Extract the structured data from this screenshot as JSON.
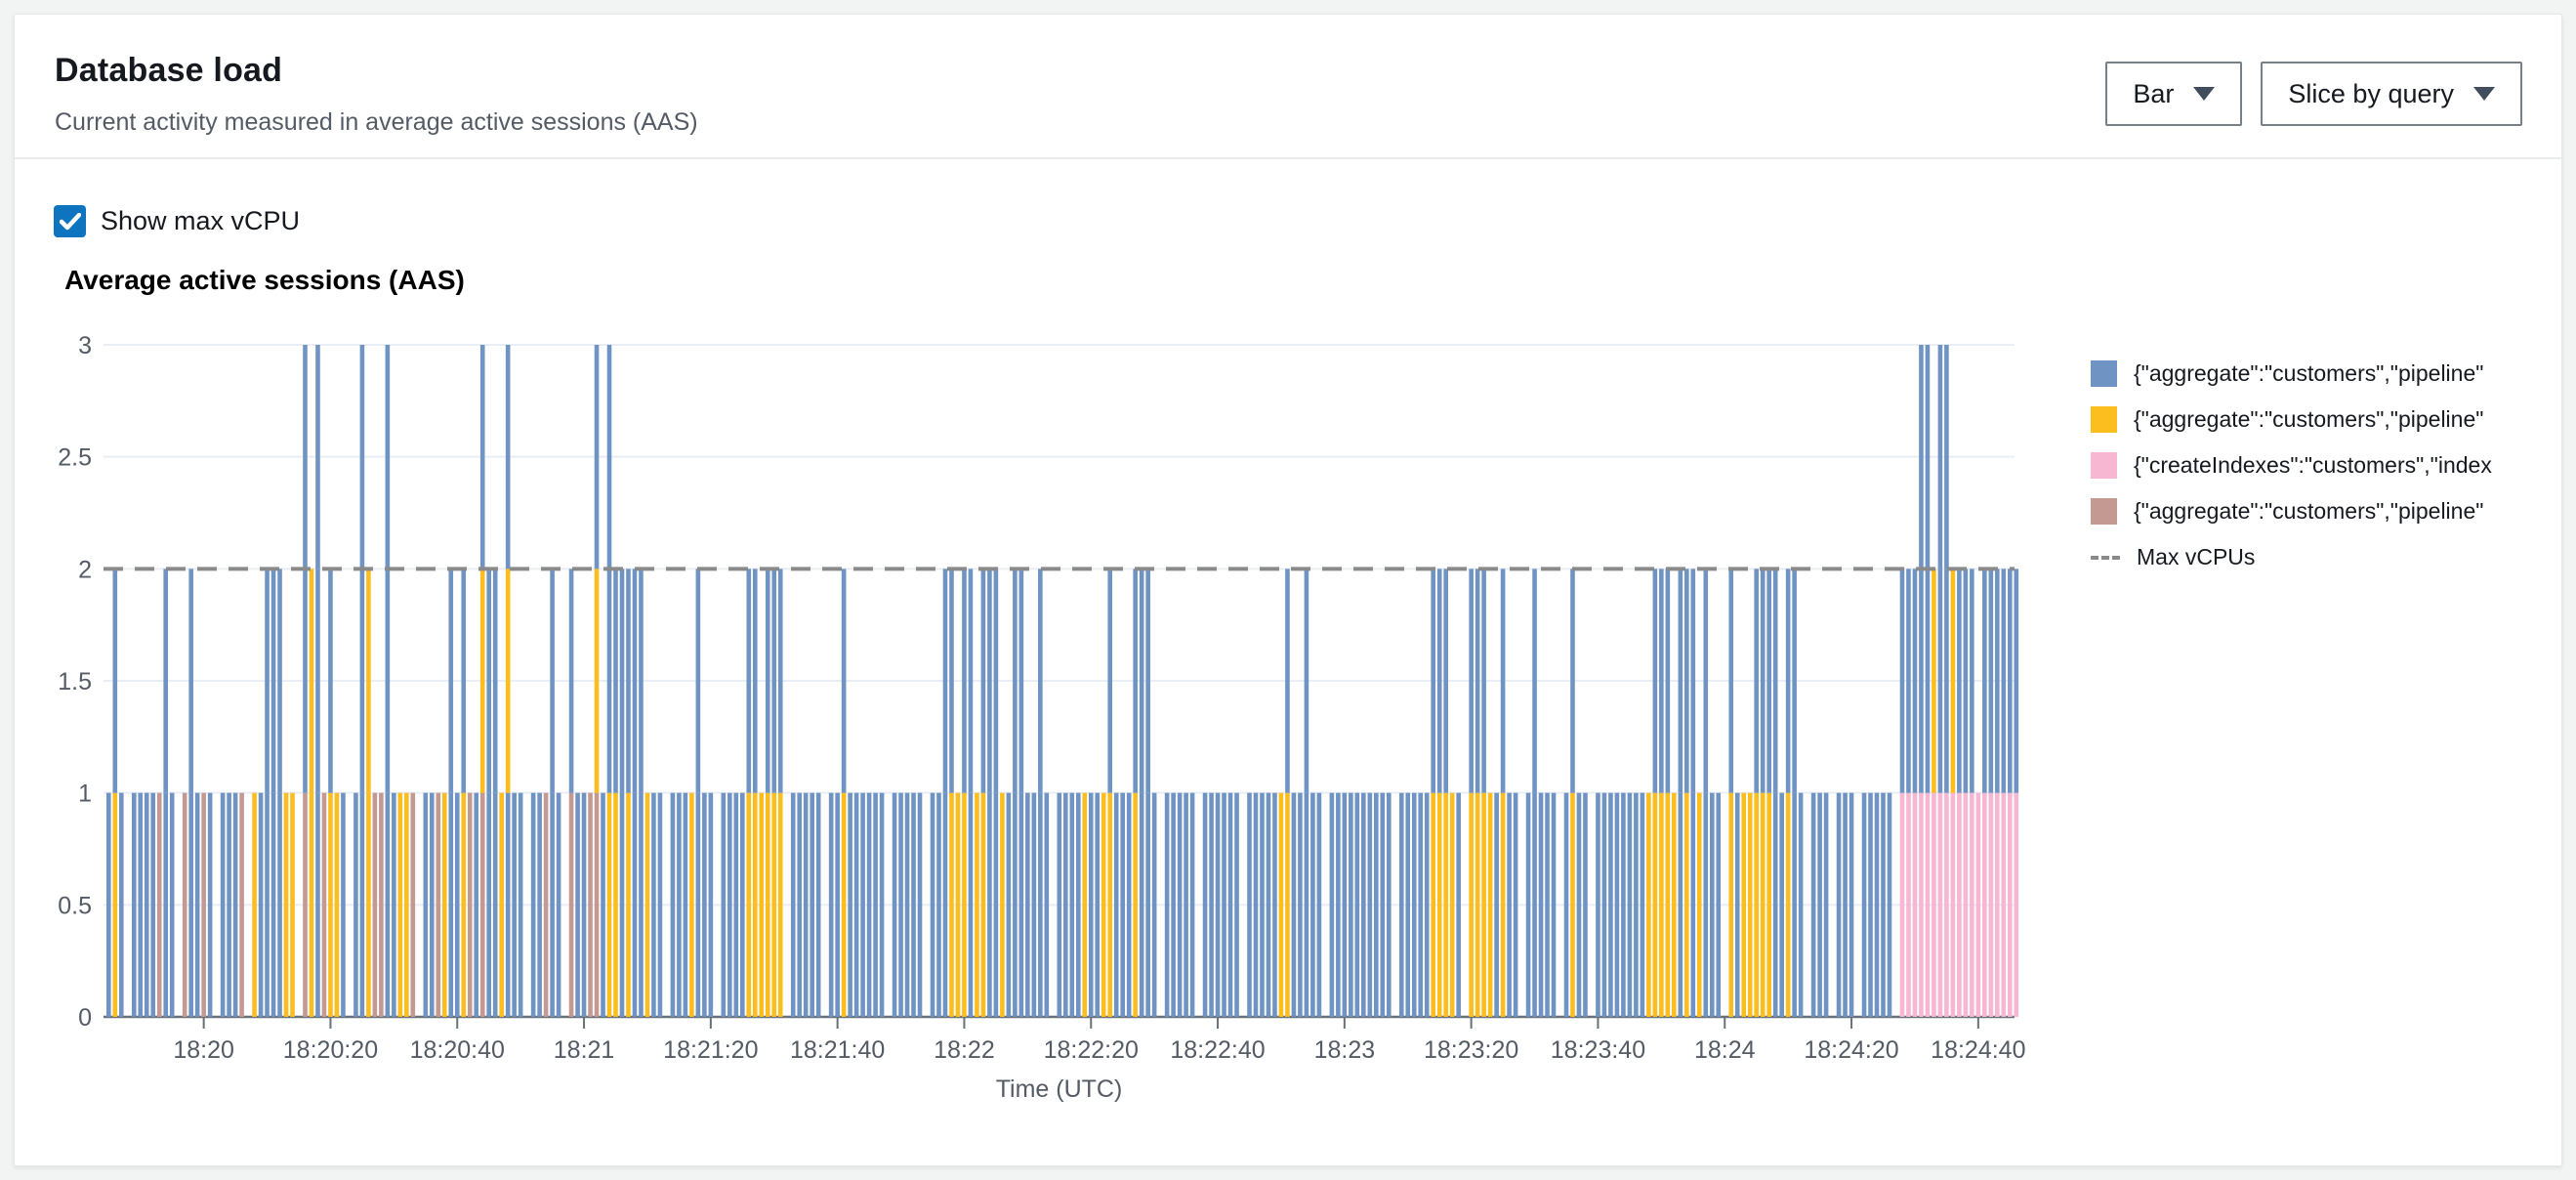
{
  "header": {
    "title": "Database load",
    "subtitle": "Current activity measured in average active sessions (AAS)"
  },
  "controls": {
    "chart_type_label": "Bar",
    "slice_by_label": "Slice by query"
  },
  "checkbox": {
    "label": "Show max vCPU",
    "checked": true
  },
  "chart_data": {
    "type": "bar",
    "title": "Average active sessions (AAS)",
    "xlabel": "Time (UTC)",
    "ylabel": "Average active sessions (AAS)",
    "ylim": [
      0,
      3
    ],
    "y_ticks": [
      0,
      0.5,
      1,
      1.5,
      2,
      2.5,
      3
    ],
    "x_ticks": [
      "18:20",
      "18:20:20",
      "18:20:40",
      "18:21",
      "18:21:20",
      "18:21:40",
      "18:22",
      "18:22:20",
      "18:22:40",
      "18:23",
      "18:23:20",
      "18:23:40",
      "18:24",
      "18:24:20",
      "18:24:40"
    ],
    "start_time": "18:19:45",
    "seconds_per_bar": 1,
    "grid": true,
    "legend_position": "right",
    "max_vcpus": 2,
    "colors": {
      "b": "#6f94c4",
      "y": "#fcbd1f",
      "p": "#f7b6d2",
      "n": "#c39991",
      "dashed_line": "#8a8a8a",
      "grid_line": "#e9edf5",
      "axis_line": "#687078",
      "tick_text": "#545b64",
      "checkbox_blue": "#0f74bf"
    },
    "legend": [
      {
        "label": "{\"aggregate\":\"customers\",\"pipeline\"",
        "color_key": "b"
      },
      {
        "label": "{\"aggregate\":\"customers\",\"pipeline\"",
        "color_key": "y"
      },
      {
        "label": "{\"createIndexes\":\"customers\",\"index",
        "color_key": "p"
      },
      {
        "label": "{\"aggregate\":\"customers\",\"pipeline\"",
        "color_key": "n"
      },
      {
        "label": "Max vCPUs",
        "dashed": true
      }
    ],
    "bars": [
      "b",
      "yb",
      "b",
      "",
      "b",
      "b",
      "b",
      "b",
      "n",
      "bb",
      "b",
      "",
      "n",
      "bb",
      "b",
      "n",
      "b",
      "",
      "b",
      "b",
      "b",
      "n",
      "",
      "y",
      "b",
      "bb",
      "bb",
      "bb",
      "y",
      "y",
      "",
      "nbb",
      "yy",
      "bbb",
      "n",
      "yb",
      "y",
      "b",
      "",
      "b",
      "bbb",
      "yy",
      "n",
      "n",
      "bbb",
      "b",
      "y",
      "y",
      "n",
      "",
      "b",
      "b",
      "n",
      "y",
      "bb",
      "b",
      "yb",
      "n",
      "b",
      "nyb",
      "bb",
      "bb",
      "y",
      "byb",
      "b",
      "b",
      "",
      "b",
      "b",
      "n",
      "bb",
      "b",
      "",
      "nb",
      "b",
      "b",
      "n",
      "nyb",
      "b",
      "ybb",
      "yb",
      "bb",
      "yb",
      "bb",
      "bb",
      "y",
      "b",
      "b",
      "",
      "b",
      "b",
      "b",
      "y",
      "bb",
      "b",
      "b",
      "",
      "b",
      "b",
      "b",
      "b",
      "yb",
      "yb",
      "y",
      "yb",
      "yb",
      "yb",
      "",
      "b",
      "b",
      "b",
      "b",
      "b",
      "",
      "b",
      "b",
      "yb",
      "b",
      "b",
      "b",
      "b",
      "b",
      "b",
      "",
      "b",
      "b",
      "b",
      "b",
      "b",
      "",
      "b",
      "b",
      "bb",
      "yb",
      "y",
      "yb",
      "bb",
      "y",
      "yb",
      "bb",
      "bb",
      "y",
      "b",
      "bb",
      "bb",
      "b",
      "b",
      "bb",
      "b",
      "",
      "b",
      "b",
      "b",
      "b",
      "y",
      "b",
      "b",
      "y",
      "yb",
      "b",
      "b",
      "b",
      "yb",
      "bb",
      "bb",
      "b",
      "",
      "b",
      "b",
      "b",
      "b",
      "b",
      "",
      "b",
      "b",
      "b",
      "b",
      "b",
      "b",
      "",
      "b",
      "b",
      "b",
      "b",
      "b",
      "y",
      "yb",
      "b",
      "b",
      "bb",
      "b",
      "b",
      "",
      "b",
      "b",
      "b",
      "b",
      "b",
      "b",
      "b",
      "b",
      "b",
      "b",
      "",
      "b",
      "b",
      "b",
      "b",
      "b",
      "yb",
      "yb",
      "yb",
      "y",
      "b",
      "",
      "yb",
      "yb",
      "yb",
      "y",
      "b",
      "yb",
      "b",
      "b",
      "",
      "b",
      "bb",
      "b",
      "b",
      "b",
      "",
      "b",
      "yb",
      "b",
      "b",
      "",
      "b",
      "b",
      "b",
      "b",
      "b",
      "b",
      "b",
      "b",
      "y",
      "yb",
      "yb",
      "yb",
      "y",
      "bb",
      "yb",
      "bb",
      "y",
      "bb",
      "b",
      "b",
      "",
      "yb",
      "b",
      "y",
      "y",
      "yb",
      "yb",
      "yb",
      "bb",
      "b",
      "yb",
      "bb",
      "b",
      "",
      "b",
      "b",
      "b",
      "",
      "b",
      "b",
      "b",
      "",
      "b",
      "b",
      "b",
      "b",
      "b",
      "",
      "pb",
      "pb",
      "pb",
      "pbb",
      "pbb",
      "py",
      "pbb",
      "pbb",
      "py",
      "pb",
      "pb",
      "pb",
      "p",
      "pb",
      "pb",
      "pb",
      "pb",
      "pb",
      "pb"
    ]
  }
}
